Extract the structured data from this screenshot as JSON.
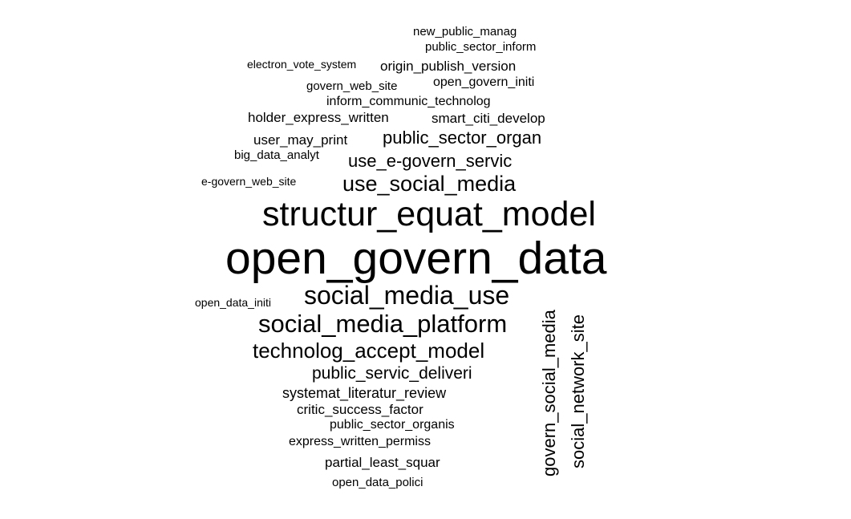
{
  "words": {
    "w01": "new_public_manag",
    "w02": "public_sector_inform",
    "w03": "electron_vote_system",
    "w04": "origin_publish_version",
    "w05": "govern_web_site",
    "w06": "open_govern_initi",
    "w07": "inform_communic_technolog",
    "w08": "holder_express_written",
    "w09": "smart_citi_develop",
    "w10": "user_may_print",
    "w11": "public_sector_organ",
    "w12": "big_data_analyt",
    "w13": "use_e-govern_servic",
    "w14": "e-govern_web_site",
    "w15": "use_social_media",
    "w16": "structur_equat_model",
    "w17": "open_govern_data",
    "w18": "open_data_initi",
    "w19": "social_media_use",
    "w20": "social_media_platform",
    "w21": "technolog_accept_model",
    "w22": "public_servic_deliveri",
    "w23": "systemat_literatur_review",
    "w24": "critic_success_factor",
    "w25": "public_sector_organis",
    "w26": "express_written_permiss",
    "w27": "partial_least_squar",
    "w28": "open_data_polici",
    "w29": "govern_social_media",
    "w30": "social_network_site"
  },
  "colors": {
    "text": "#000000",
    "background": "#ffffff"
  }
}
